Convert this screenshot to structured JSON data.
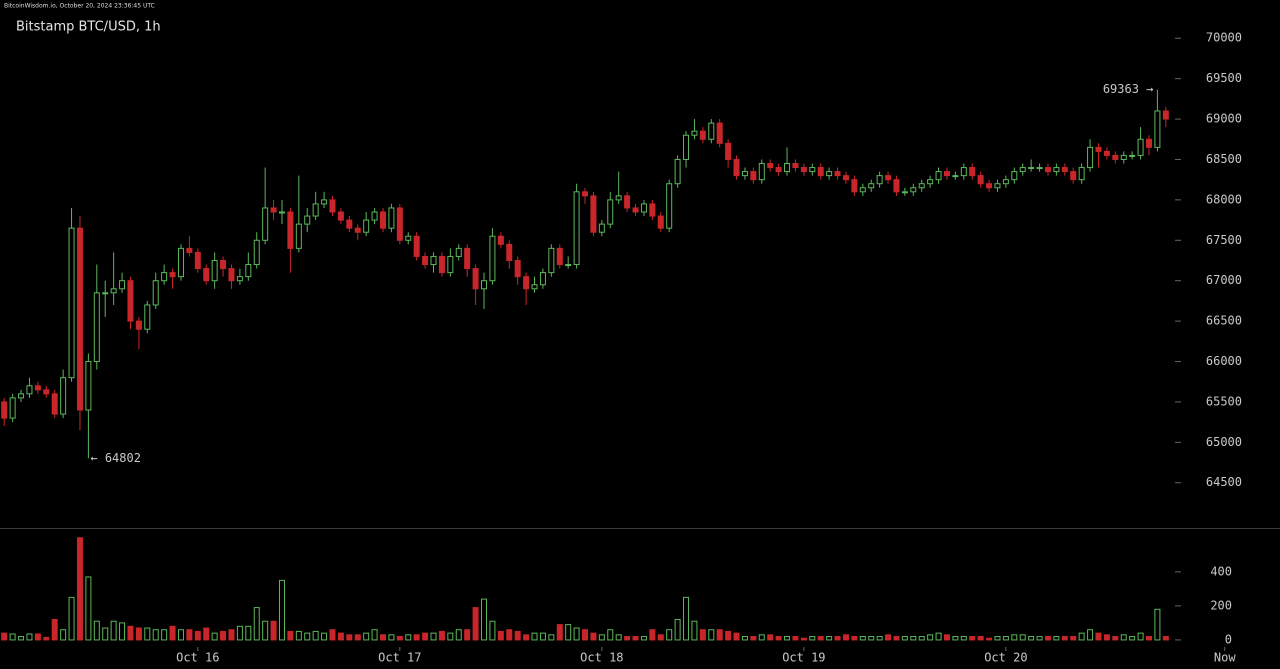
{
  "chart_data": {
    "type": "candlestick",
    "header": "BitcoinWisdom.io, October 20, 2024 23:36:45 UTC",
    "title": "Bitstamp BTC/USD, 1h",
    "x": [
      0,
      1,
      2,
      3,
      4,
      5,
      6,
      7,
      8,
      9,
      10,
      11,
      12,
      13,
      14,
      15,
      16,
      17,
      18,
      19,
      20,
      21,
      22,
      23,
      24,
      25,
      26,
      27,
      28,
      29,
      30,
      31,
      32,
      33,
      34,
      35,
      36,
      37,
      38,
      39,
      40,
      41,
      42,
      43,
      44,
      45,
      46,
      47,
      48,
      49,
      50,
      51,
      52,
      53,
      54,
      55,
      56,
      57,
      58,
      59,
      60,
      61,
      62,
      63,
      64,
      65,
      66,
      67,
      68,
      69,
      70,
      71,
      72,
      73,
      74,
      75,
      76,
      77,
      78,
      79,
      80,
      81,
      82,
      83,
      84,
      85,
      86,
      87,
      88,
      89,
      90,
      91,
      92,
      93,
      94,
      95,
      96,
      97,
      98,
      99,
      100,
      101,
      102,
      103,
      104,
      105,
      106,
      107,
      108,
      109,
      110,
      111,
      112,
      113,
      114,
      115,
      116,
      117,
      118,
      119,
      120,
      121,
      122,
      123,
      124,
      125,
      126,
      127,
      128,
      129,
      130,
      131,
      132,
      133,
      134,
      135,
      136,
      137,
      138
    ],
    "open": [
      65500,
      65300,
      65550,
      65600,
      65700,
      65650,
      65600,
      65350,
      65800,
      67650,
      65400,
      66000,
      66850,
      66850,
      66900,
      67000,
      66500,
      66400,
      66700,
      67000,
      67100,
      67050,
      67400,
      67350,
      67150,
      67000,
      67250,
      67150,
      67000,
      67050,
      67200,
      67500,
      67900,
      67850,
      67850,
      67400,
      67700,
      67800,
      67950,
      68000,
      67850,
      67750,
      67650,
      67600,
      67750,
      67850,
      67650,
      67900,
      67500,
      67550,
      67300,
      67200,
      67300,
      67100,
      67300,
      67400,
      67150,
      66900,
      67000,
      67550,
      67450,
      67250,
      67050,
      66900,
      66950,
      67100,
      67400,
      67200,
      67200,
      68100,
      68050,
      67600,
      67700,
      68000,
      68050,
      67900,
      67850,
      67950,
      67800,
      67650,
      68200,
      68500,
      68800,
      68850,
      68750,
      68950,
      68700,
      68500,
      68300,
      68350,
      68250,
      68450,
      68400,
      68350,
      68450,
      68400,
      68350,
      68400,
      68300,
      68350,
      68300,
      68250,
      68100,
      68150,
      68200,
      68300,
      68250,
      68100,
      68100,
      68150,
      68200,
      68250,
      68350,
      68300,
      68300,
      68400,
      68300,
      68200,
      68150,
      68200,
      68250,
      68350,
      68400,
      68400,
      68400,
      68350,
      68400,
      68350,
      68250,
      68400,
      68650,
      68600,
      68550,
      68500,
      68550,
      68550,
      68750,
      68650,
      69100
    ],
    "high": [
      65550,
      65600,
      65650,
      65800,
      65750,
      65700,
      65650,
      65900,
      67900,
      67800,
      66100,
      67200,
      67000,
      67350,
      67100,
      67050,
      66550,
      66750,
      67100,
      67200,
      67150,
      67450,
      67550,
      67400,
      67200,
      67350,
      67300,
      67200,
      67150,
      67350,
      67600,
      68400,
      68000,
      68000,
      67900,
      68300,
      67900,
      68100,
      68100,
      68050,
      67900,
      67800,
      67700,
      67850,
      67900,
      67900,
      67950,
      67950,
      67600,
      67600,
      67350,
      67350,
      67350,
      67400,
      67450,
      67450,
      67200,
      67100,
      67650,
      67600,
      67500,
      67300,
      67100,
      67050,
      67150,
      67450,
      67450,
      67300,
      68200,
      68150,
      68100,
      67750,
      68100,
      68350,
      68100,
      67950,
      68000,
      68000,
      67850,
      68250,
      68550,
      68850,
      69000,
      68900,
      69000,
      69000,
      68750,
      68550,
      68400,
      68400,
      68500,
      68500,
      68450,
      68650,
      68500,
      68450,
      68450,
      68450,
      68400,
      68400,
      68350,
      68300,
      68200,
      68250,
      68350,
      68350,
      68300,
      68150,
      68200,
      68250,
      68300,
      68400,
      68400,
      68350,
      68450,
      68450,
      68350,
      68250,
      68250,
      68300,
      68400,
      68450,
      68500,
      68450,
      68450,
      68450,
      68450,
      68400,
      68450,
      68750,
      68700,
      68650,
      68600,
      68600,
      68600,
      68900,
      68800,
      69363,
      69150
    ],
    "low": [
      65200,
      65250,
      65500,
      65550,
      65600,
      65550,
      65300,
      65300,
      65750,
      65150,
      64802,
      65900,
      66550,
      66700,
      66850,
      66400,
      66150,
      66350,
      66650,
      66950,
      66900,
      67000,
      67300,
      67100,
      66950,
      66900,
      67050,
      66900,
      66950,
      67000,
      67150,
      67450,
      67750,
      67700,
      67100,
      67350,
      67600,
      67750,
      67900,
      67800,
      67700,
      67600,
      67500,
      67550,
      67700,
      67600,
      67600,
      67450,
      67450,
      67250,
      67150,
      67100,
      67050,
      67050,
      67250,
      67050,
      66700,
      66650,
      66950,
      67400,
      67150,
      66950,
      66700,
      66850,
      66900,
      67050,
      67150,
      67150,
      67150,
      67950,
      67550,
      67550,
      67650,
      67950,
      67850,
      67800,
      67800,
      67750,
      67600,
      67600,
      68150,
      68400,
      68750,
      68700,
      68700,
      68650,
      68400,
      68250,
      68250,
      68200,
      68200,
      68350,
      68300,
      68300,
      68350,
      68300,
      68300,
      68250,
      68250,
      68250,
      68200,
      68050,
      68050,
      68100,
      68150,
      68200,
      68050,
      68050,
      68050,
      68100,
      68150,
      68200,
      68250,
      68250,
      68250,
      68250,
      68150,
      68100,
      68100,
      68150,
      68200,
      68300,
      68350,
      68350,
      68300,
      68300,
      68300,
      68200,
      68200,
      68350,
      68400,
      68500,
      68450,
      68450,
      68500,
      68500,
      68550,
      68600,
      68900
    ],
    "close": [
      65300,
      65550,
      65600,
      65700,
      65650,
      65600,
      65350,
      65800,
      67650,
      65400,
      66000,
      66850,
      66850,
      66900,
      67000,
      66500,
      66400,
      66700,
      67000,
      67100,
      67050,
      67400,
      67350,
      67150,
      67000,
      67250,
      67150,
      67000,
      67050,
      67200,
      67500,
      67900,
      67850,
      67850,
      67400,
      67700,
      67800,
      67950,
      68000,
      67850,
      67750,
      67650,
      67600,
      67750,
      67850,
      67650,
      67900,
      67500,
      67550,
      67300,
      67200,
      67300,
      67100,
      67300,
      67400,
      67150,
      66900,
      67000,
      67550,
      67450,
      67250,
      67050,
      66900,
      66950,
      67100,
      67400,
      67200,
      67200,
      68100,
      68050,
      67600,
      67700,
      68000,
      68050,
      67900,
      67850,
      67950,
      67800,
      67650,
      68200,
      68500,
      68800,
      68850,
      68750,
      68950,
      68700,
      68500,
      68300,
      68350,
      68250,
      68450,
      68400,
      68350,
      68450,
      68400,
      68350,
      68400,
      68300,
      68350,
      68300,
      68250,
      68100,
      68150,
      68200,
      68300,
      68250,
      68100,
      68100,
      68150,
      68200,
      68250,
      68350,
      68300,
      68300,
      68400,
      68300,
      68200,
      68150,
      68200,
      68250,
      68350,
      68400,
      68400,
      68400,
      68350,
      68400,
      68350,
      68250,
      68400,
      68650,
      68600,
      68550,
      68500,
      68550,
      68550,
      68750,
      68650,
      69100,
      69000
    ],
    "volume": [
      40,
      35,
      20,
      35,
      35,
      15,
      120,
      60,
      250,
      600,
      370,
      110,
      70,
      110,
      100,
      80,
      70,
      70,
      60,
      60,
      80,
      60,
      60,
      50,
      70,
      40,
      50,
      60,
      80,
      80,
      190,
      110,
      110,
      350,
      50,
      50,
      40,
      50,
      40,
      60,
      40,
      30,
      30,
      40,
      60,
      30,
      30,
      20,
      30,
      30,
      40,
      40,
      50,
      40,
      60,
      60,
      190,
      240,
      110,
      50,
      60,
      50,
      30,
      40,
      40,
      30,
      90,
      90,
      70,
      60,
      40,
      30,
      60,
      30,
      20,
      20,
      20,
      60,
      30,
      60,
      120,
      250,
      110,
      60,
      60,
      60,
      50,
      40,
      20,
      20,
      30,
      30,
      20,
      20,
      20,
      10,
      20,
      20,
      20,
      20,
      30,
      20,
      20,
      20,
      20,
      30,
      20,
      20,
      20,
      20,
      30,
      40,
      30,
      20,
      20,
      20,
      20,
      10,
      20,
      20,
      30,
      30,
      20,
      20,
      20,
      20,
      20,
      20,
      40,
      60,
      40,
      30,
      20,
      30,
      20,
      40,
      20,
      180,
      20
    ],
    "annotations": [
      {
        "label": "← 64802"
      },
      {
        "label": "69363 →"
      }
    ],
    "up_color": "#5cb85c",
    "down_color": "#c9262b",
    "xlim": [
      -0.5,
      148
    ],
    "xticks": [
      {
        "value": 23,
        "label": "Oct 16"
      },
      {
        "value": 47,
        "label": "Oct 17"
      },
      {
        "value": 71,
        "label": "Oct 18"
      },
      {
        "value": 95,
        "label": "Oct 19"
      },
      {
        "value": 119,
        "label": "Oct 20"
      },
      {
        "value": 145,
        "label": "Now"
      }
    ],
    "ylim": [
      63940,
      70300
    ],
    "yticks": [
      64500,
      65000,
      65500,
      66000,
      66500,
      67000,
      67500,
      68000,
      68500,
      69000,
      69500,
      70000
    ],
    "vlim": [
      -65,
      640
    ],
    "vticks": [
      0,
      200,
      400
    ]
  }
}
